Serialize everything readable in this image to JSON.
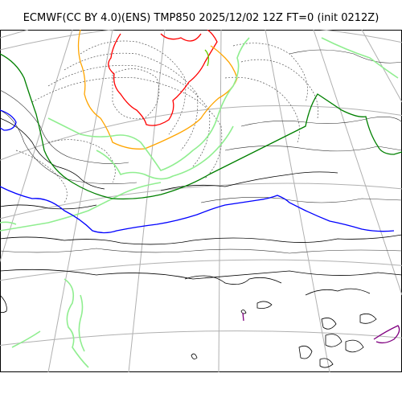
{
  "title": "ECMWF(CC BY 4.0)(ENS) TMP850 2025/12/02 12Z FT=0 (init 0212Z)",
  "colors": {
    "background": "#ffffff",
    "coastline": "#000000",
    "graticule": "#b0b0b0",
    "temp_contour_dotted": "#555555",
    "red_isotherm": "#ff0000",
    "orange_isotherm": "#ffa500",
    "lightgreen_isotherm": "#90ee90",
    "green_isotherm": "#008000",
    "blue_isotherm": "#0000ff",
    "purple_isotherm": "#800080",
    "lime_isotherm": "#66cc00"
  }
}
